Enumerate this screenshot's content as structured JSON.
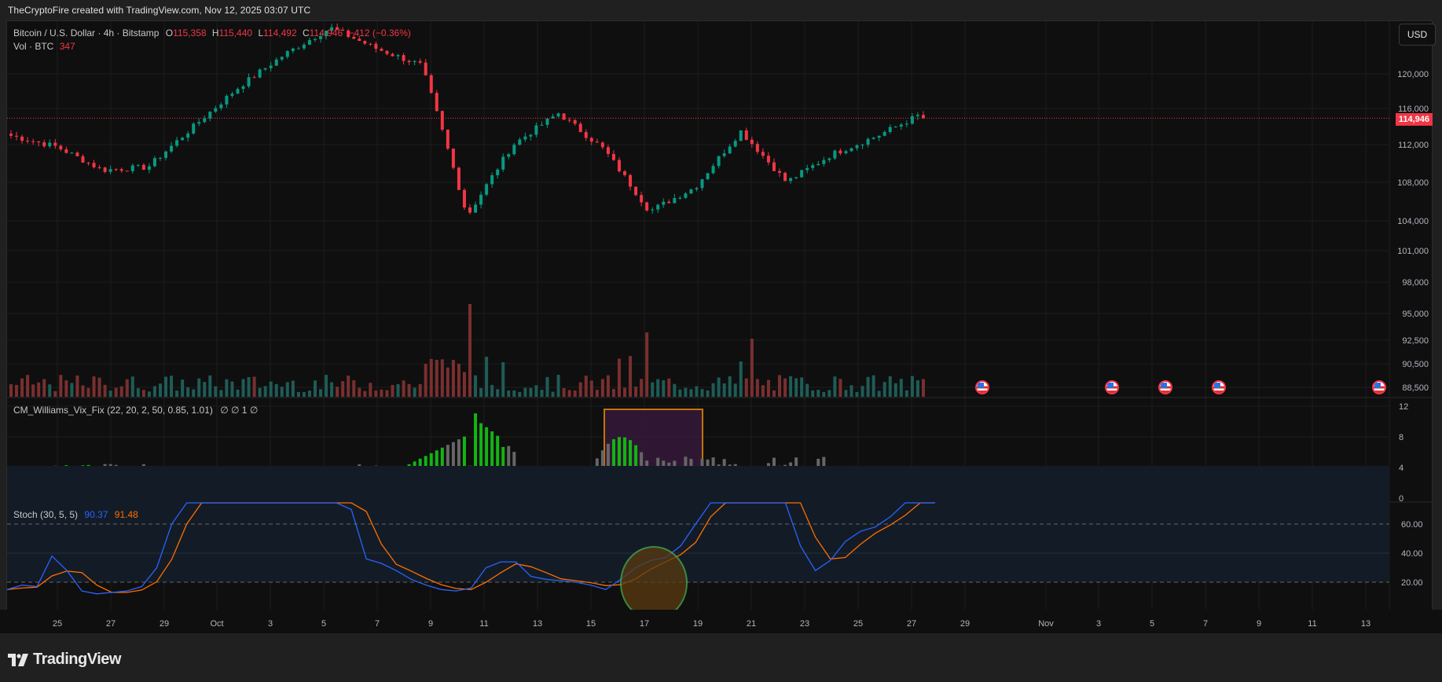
{
  "header": {
    "attribution": "TheCryptoFire created with TradingView.com, Nov 12, 2025 03:07 UTC"
  },
  "main_pane": {
    "symbol": "Bitcoin / U.S. Dollar · 4h · Bitstamp",
    "open_label": "O",
    "open": "115,358",
    "high_label": "H",
    "high": "115,440",
    "low_label": "L",
    "low": "114,492",
    "close_label": "C",
    "close": "114,946",
    "change": "−412 (−0.36%)",
    "volume_label": "Vol · BTC",
    "volume": "347",
    "currency_button": "USD",
    "last_price_tag": "114,946"
  },
  "vix_pane": {
    "title": "CM_Williams_Vix_Fix (22, 20, 2, 50, 0.85, 1.01)",
    "values": "∅  ∅  1  ∅"
  },
  "stoch_pane": {
    "title": "Stoch (30, 5, 5)",
    "k_value": "90.37",
    "d_value": "91.48"
  },
  "footer": {
    "brand": "TradingView"
  },
  "colors": {
    "up": "#089981",
    "down": "#f23645",
    "vol_up": "#1e5c57",
    "vol_down": "#7a2f2f",
    "vix_green": "#13b413",
    "vix_gray": "#666666",
    "stoch_k": "#2962ff",
    "stoch_d": "#ff6d00",
    "highlight_box": "#ff9800",
    "highlight_circle": "#4caf50"
  },
  "chart_data": [
    {
      "type": "candlestick",
      "title": "Bitcoin / U.S. Dollar · 4h · Bitstamp",
      "y_axis_ticks": [
        "120,000",
        "116,000",
        "112,000",
        "108,000",
        "104,000",
        "101,000",
        "98,000",
        "95,000",
        "92,500",
        "90,500",
        "88,500"
      ],
      "x_axis_ticks": [
        "25",
        "27",
        "29",
        "Oct",
        "3",
        "5",
        "7",
        "9",
        "11",
        "13",
        "15",
        "17",
        "19",
        "21",
        "23",
        "25",
        "27",
        "29",
        "Nov",
        "3",
        "5",
        "7",
        "9",
        "11",
        "13"
      ],
      "scale": "log",
      "last_price": 114946,
      "key_points": [
        {
          "date": "Sep 23",
          "price": 113000
        },
        {
          "date": "Sep 25",
          "price": 111800
        },
        {
          "date": "Sep 26",
          "price": 109300
        },
        {
          "date": "Sep 28",
          "price": 109600
        },
        {
          "date": "Sep 30",
          "price": 114000
        },
        {
          "date": "Oct 2",
          "price": 118500
        },
        {
          "date": "Oct 4",
          "price": 122300
        },
        {
          "date": "Oct 6",
          "price": 125500
        },
        {
          "date": "Oct 8",
          "price": 123000
        },
        {
          "date": "Oct 10",
          "price": 121000
        },
        {
          "date": "Oct 10 low",
          "price": 104500
        },
        {
          "date": "Oct 11",
          "price": 112000
        },
        {
          "date": "Oct 13",
          "price": 115500
        },
        {
          "date": "Oct 15",
          "price": 111500
        },
        {
          "date": "Oct 17",
          "price": 105000
        },
        {
          "date": "Oct 19",
          "price": 107500
        },
        {
          "date": "Oct 21",
          "price": 113500
        },
        {
          "date": "Oct 22",
          "price": 108000
        },
        {
          "date": "Oct 24",
          "price": 111000
        },
        {
          "date": "Oct 26",
          "price": 113000
        },
        {
          "date": "Oct 27",
          "price": 115500
        }
      ],
      "volume_spike": {
        "date": "Oct 10",
        "value": "max"
      }
    },
    {
      "type": "bar",
      "title": "CM_Williams_Vix_Fix (22, 20, 2, 50, 0.85, 1.01)",
      "y_axis_ticks": [
        "12",
        "8",
        "4",
        "0"
      ],
      "ylim": [
        0,
        12
      ],
      "notes": "green bars = signal; peaks ~11.5 on Oct 10-11; ~8.5 on Oct 17 (highlighted box Oct 16-19)"
    },
    {
      "type": "line",
      "title": "Stoch (30, 5, 5)",
      "series": [
        {
          "name": "%K",
          "last": 90.37
        },
        {
          "name": "%D",
          "last": 91.48
        }
      ],
      "y_axis_ticks": [
        "60.00",
        "40.00",
        "20.00"
      ],
      "bands": [
        20,
        80
      ],
      "annotation": "green circle around oversold cross near Oct 17"
    }
  ]
}
